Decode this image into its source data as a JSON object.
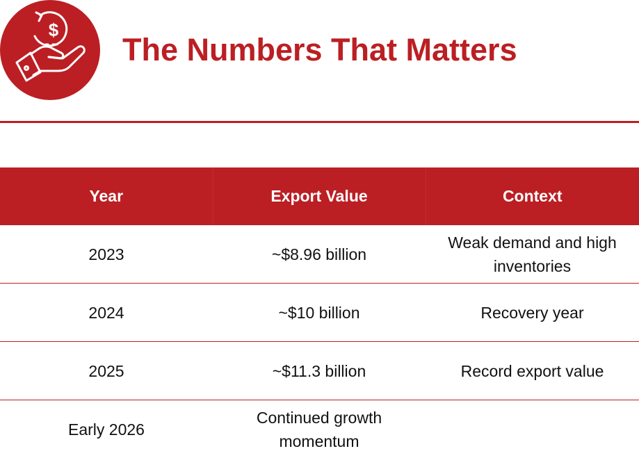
{
  "header": {
    "icon": "hand-dollar-refund-icon",
    "title": "The Numbers That Matters"
  },
  "colors": {
    "accent": "#bb1f23",
    "text": "#111111",
    "header_text": "#ffffff"
  },
  "table": {
    "columns": [
      "Year",
      "Export Value",
      "Context"
    ],
    "rows": [
      [
        "2023",
        "~$8.96 billion",
        "Weak demand and high inventories"
      ],
      [
        "2024",
        "~$10 billion",
        "Recovery year"
      ],
      [
        "2025",
        "~$11.3 billion",
        "Record export value"
      ],
      [
        "Early 2026",
        "Continued growth momentum",
        ""
      ]
    ]
  }
}
